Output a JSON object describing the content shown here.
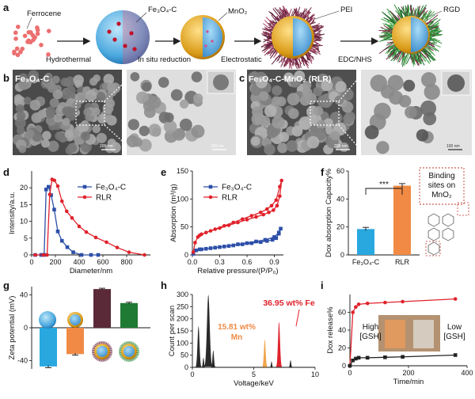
{
  "panels": {
    "a": {
      "label": "a",
      "ferrocene": "Ferrocene",
      "fe3o4c": "Fe₃O₄-C",
      "mno2": "MnO₂",
      "pei": "PEI",
      "rgd": "RGD",
      "steps": [
        "Hydrothermal",
        "In situ reduction",
        "Electrostatic",
        "EDC/NHS"
      ]
    },
    "b": {
      "label": "b",
      "title": "Fe₃O₄-C",
      "scale1": "200 nm",
      "scale2": "100 nm"
    },
    "c": {
      "label": "c",
      "title": "Fe₃O₄-C-MnO₂ (RLR)",
      "scale1": "200 nm",
      "scale2": "100 nm"
    },
    "d": {
      "label": "d"
    },
    "e": {
      "label": "e"
    },
    "f": {
      "label": "f"
    },
    "g": {
      "label": "g"
    },
    "h": {
      "label": "h"
    },
    "i": {
      "label": "i"
    }
  },
  "colors": {
    "blue": "#2d4fa8",
    "red": "#e0222b",
    "orange": "#f08a45",
    "lightblue": "#29a8e0",
    "olive": "#1f7a33"
  },
  "chart_data": [
    {
      "id": "d",
      "type": "line",
      "xlabel": "Diameter/nm",
      "ylabel": "Intensity/a.u.",
      "xlim": [
        0,
        1000
      ],
      "ylim": [
        0,
        25
      ],
      "xticks": [
        0,
        200,
        400,
        600,
        800
      ],
      "yticks": [
        0,
        5,
        10,
        15,
        20
      ],
      "series": [
        {
          "name": "Fe₃O₄-C",
          "color": "#2d4fa8",
          "marker": "square",
          "x": [
            30,
            80,
            105,
            122,
            142,
            164,
            190,
            220,
            255,
            300,
            350,
            420,
            500,
            560
          ],
          "y": [
            0,
            0,
            0,
            19.5,
            20.3,
            17.8,
            13.5,
            7,
            4.2,
            2.3,
            0.8,
            0,
            0,
            0
          ]
        },
        {
          "name": "RLR",
          "color": "#e0222b",
          "marker": "circle",
          "x": [
            30,
            100,
            130,
            152,
            172,
            192,
            220,
            255,
            295,
            340,
            400,
            460,
            540,
            630,
            720,
            820,
            950
          ],
          "y": [
            0,
            0,
            0,
            18,
            22.5,
            22.2,
            20.5,
            16,
            13,
            11,
            8.5,
            6.8,
            5.2,
            3.8,
            2.2,
            0.8,
            0
          ]
        }
      ]
    },
    {
      "id": "e",
      "type": "line",
      "xlabel": "Relative pressure/(P/P₀)",
      "ylabel": "Absorption (m³/g)",
      "xlim": [
        0,
        1.0
      ],
      "ylim": [
        0,
        150
      ],
      "xticks": [
        0.0,
        0.3,
        0.6,
        0.9
      ],
      "yticks": [
        0,
        50,
        100,
        150
      ],
      "series": [
        {
          "name": "Fe₃O₄-C",
          "color": "#2d4fa8",
          "marker": "square",
          "x": [
            0.01,
            0.04,
            0.08,
            0.15,
            0.25,
            0.35,
            0.45,
            0.55,
            0.65,
            0.75,
            0.82,
            0.88,
            0.92,
            0.95,
            0.97,
            0.95,
            0.9,
            0.8,
            0.7,
            0.6,
            0.5,
            0.4,
            0.3,
            0.2,
            0.1
          ],
          "y": [
            2,
            8,
            10,
            11,
            13,
            15,
            17,
            19,
            21,
            23,
            25,
            27,
            30,
            38,
            47,
            40,
            32,
            27,
            24,
            21,
            19,
            16,
            14,
            12,
            10
          ]
        },
        {
          "name": "RLR",
          "color": "#e0222b",
          "marker": "circle",
          "x": [
            0.01,
            0.03,
            0.06,
            0.1,
            0.2,
            0.3,
            0.4,
            0.5,
            0.6,
            0.7,
            0.78,
            0.84,
            0.89,
            0.93,
            0.96,
            0.98,
            0.96,
            0.92,
            0.87,
            0.82,
            0.75,
            0.65,
            0.55,
            0.45,
            0.35,
            0.25,
            0.15,
            0.08
          ],
          "y": [
            5,
            22,
            32,
            37,
            43,
            48,
            53,
            58,
            63,
            68,
            72,
            76,
            80,
            88,
            105,
            133,
            122,
            98,
            88,
            82,
            76,
            70,
            64,
            58,
            52,
            46,
            40,
            35
          ]
        }
      ]
    },
    {
      "id": "f",
      "type": "bar",
      "ylabel": "Dox absorption Capacity%",
      "categories": [
        "Fe₃O₄-C",
        "RLR"
      ],
      "values": [
        18.5,
        49.5
      ],
      "errors": [
        1.2,
        1.5
      ],
      "colors": [
        "#29a8e0",
        "#f08a45"
      ],
      "ylim": [
        0,
        60
      ],
      "yticks": [
        0,
        20,
        40,
        60
      ],
      "significance": "***",
      "annotation": "Binding sites on MnO₂"
    },
    {
      "id": "g",
      "type": "bar",
      "ylabel": "Zeta potential (mV)",
      "values": [
        -47,
        -32,
        47,
        30
      ],
      "errors": [
        1.5,
        1.2,
        1.0,
        1.0
      ],
      "colors": [
        "#29a8e0",
        "#f08a45",
        "#5a2a38",
        "#1f7a33"
      ],
      "ylim": [
        -50,
        50
      ],
      "yticks": [
        -40,
        0,
        40
      ]
    },
    {
      "id": "h",
      "type": "area",
      "xlabel": "Voltage/keV",
      "ylabel": "Count per scan",
      "xlim": [
        0,
        10
      ],
      "ylim": [
        0,
        300
      ],
      "xticks": [
        0,
        5,
        10
      ],
      "yticks": [
        0,
        50,
        100,
        150,
        200,
        250,
        300
      ],
      "peaks": [
        {
          "x": 0.5,
          "height": 170,
          "width": 0.16,
          "color": "#2a2a2a"
        },
        {
          "x": 0.9,
          "height": 40,
          "width": 0.1,
          "color": "#2a2a2a"
        },
        {
          "x": 1.3,
          "height": 300,
          "width": 0.22,
          "color": "#2a2a2a"
        },
        {
          "x": 1.7,
          "height": 70,
          "width": 0.12,
          "color": "#2a2a2a"
        },
        {
          "x": 5.9,
          "height": 115,
          "width": 0.14,
          "color": "#f0a54a"
        },
        {
          "x": 6.45,
          "height": 25,
          "width": 0.09,
          "color": "#2a2a2a"
        },
        {
          "x": 7.06,
          "height": 188,
          "width": 0.16,
          "color": "#e0222b"
        },
        {
          "x": 8.0,
          "height": 30,
          "width": 0.1,
          "color": "#2a2a2a"
        }
      ],
      "annotations": [
        {
          "text": "36.95 wt% Fe",
          "color": "#e0222b"
        },
        {
          "text": "15.81 wt%",
          "color": "#f08a45"
        },
        {
          "text": "Mn",
          "color": "#f08a45"
        }
      ]
    },
    {
      "id": "i",
      "type": "line",
      "xlabel": "Time/min",
      "ylabel": "Dox release%",
      "xlim": [
        0,
        400
      ],
      "ylim": [
        0,
        80
      ],
      "xticks": [
        0,
        200,
        400
      ],
      "yticks": [
        0,
        20,
        40,
        60
      ],
      "series": [
        {
          "name": "High [GSH]",
          "color": "#e0222b",
          "marker": "circle",
          "x": [
            0,
            10,
            20,
            30,
            60,
            120,
            180,
            360
          ],
          "y": [
            0,
            60,
            66,
            69,
            70,
            71,
            72,
            75
          ]
        },
        {
          "name": "Low [GSH]",
          "color": "#222222",
          "marker": "square",
          "x": [
            0,
            10,
            20,
            30,
            60,
            120,
            180,
            360
          ],
          "y": [
            0,
            6,
            8,
            9,
            9,
            9.5,
            10,
            12
          ]
        }
      ],
      "labels": {
        "high": [
          "High",
          "[GSH]"
        ],
        "low": [
          "Low",
          "[GSH]"
        ]
      }
    }
  ]
}
